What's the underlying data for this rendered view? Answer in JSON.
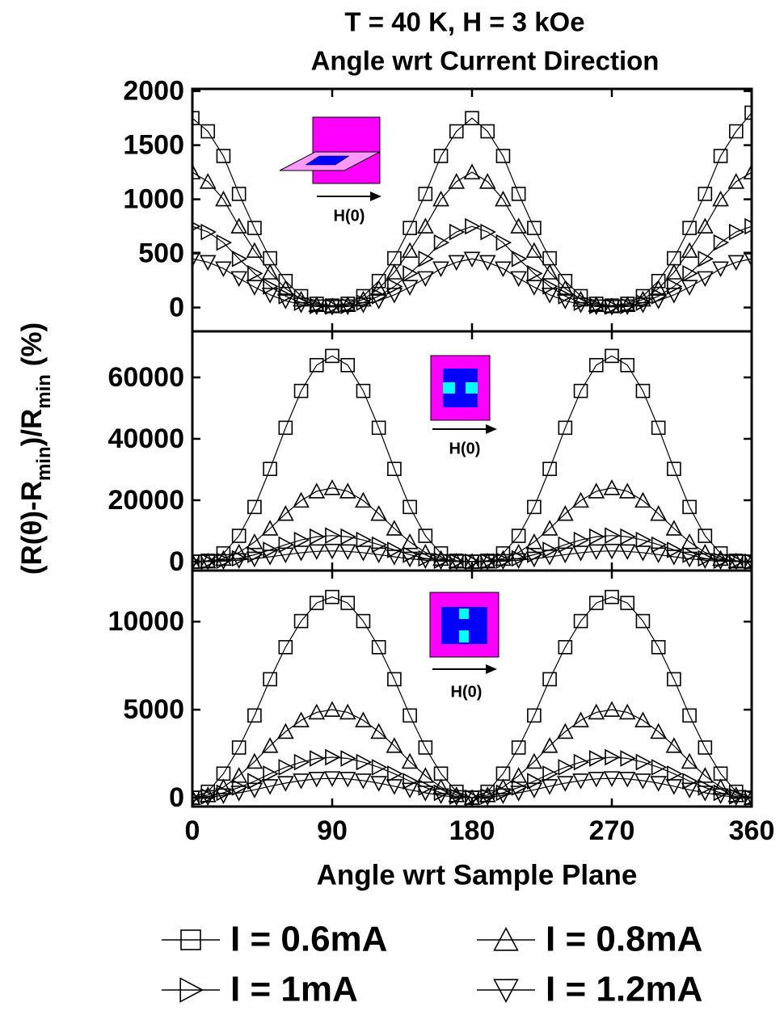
{
  "chart_data": [
    {
      "type": "scatter",
      "title": "T = 40 K, H = 3 kOe",
      "subtitle": "Angle wrt Current Direction",
      "inset_label": "H(0)",
      "x": [
        0,
        10,
        20,
        30,
        40,
        50,
        60,
        70,
        80,
        90,
        100,
        110,
        120,
        130,
        140,
        150,
        160,
        170,
        180,
        190,
        200,
        210,
        220,
        230,
        240,
        250,
        260,
        270,
        280,
        290,
        300,
        310,
        320,
        330,
        340,
        350,
        360
      ],
      "xlim": [
        0,
        360
      ],
      "xticks": [
        0,
        90,
        180,
        270,
        360
      ],
      "ylim": [
        -220,
        2020
      ],
      "yticks": [
        0,
        500,
        1000,
        1500,
        2000
      ],
      "series": [
        {
          "name": "I = 0.6mA",
          "marker": "square",
          "color": "#000000",
          "values": [
            1750,
            1628,
            1400,
            1050,
            735,
            455,
            245,
            105,
            35,
            18,
            35,
            105,
            245,
            455,
            735,
            1050,
            1400,
            1628,
            1750,
            1628,
            1400,
            1050,
            735,
            455,
            245,
            105,
            35,
            18,
            35,
            105,
            245,
            455,
            735,
            1050,
            1400,
            1628,
            1800
          ]
        },
        {
          "name": "I = 0.8mA",
          "marker": "triangle-up",
          "color": "#000000",
          "values": [
            1250,
            1163,
            1000,
            750,
            525,
            325,
            175,
            75,
            25,
            13,
            25,
            75,
            175,
            325,
            525,
            750,
            1000,
            1163,
            1250,
            1163,
            1000,
            750,
            525,
            325,
            175,
            75,
            25,
            13,
            25,
            75,
            175,
            325,
            525,
            750,
            1000,
            1163,
            1250
          ]
        },
        {
          "name": "I = 1mA",
          "marker": "triangle-right",
          "color": "#000000",
          "values": [
            750,
            698,
            600,
            450,
            315,
            195,
            105,
            45,
            15,
            8,
            15,
            45,
            105,
            195,
            315,
            450,
            600,
            698,
            750,
            698,
            600,
            450,
            315,
            195,
            105,
            45,
            15,
            8,
            15,
            45,
            105,
            195,
            315,
            450,
            600,
            698,
            750
          ]
        },
        {
          "name": "I = 1.2mA",
          "marker": "triangle-down",
          "color": "#000000",
          "values": [
            450,
            419,
            360,
            270,
            189,
            117,
            63,
            27,
            9,
            5,
            9,
            27,
            63,
            117,
            189,
            270,
            360,
            419,
            450,
            419,
            360,
            270,
            189,
            117,
            63,
            27,
            9,
            5,
            9,
            27,
            63,
            117,
            189,
            270,
            360,
            419,
            450
          ]
        }
      ]
    },
    {
      "type": "scatter",
      "inset_label": "H(0)",
      "y_label": [
        "(R(θ)-R",
        "min",
        ")/R",
        "min",
        " (%)"
      ],
      "x": [
        0,
        10,
        20,
        30,
        40,
        50,
        60,
        70,
        80,
        90,
        100,
        110,
        120,
        130,
        140,
        150,
        160,
        170,
        180,
        190,
        200,
        210,
        220,
        230,
        240,
        250,
        260,
        270,
        280,
        290,
        300,
        310,
        320,
        330,
        340,
        350,
        360
      ],
      "xlim": [
        0,
        360
      ],
      "xticks": [
        0,
        90,
        180,
        270,
        360
      ],
      "ylim": [
        -2900,
        75000
      ],
      "yticks": [
        0,
        20000,
        40000,
        60000
      ],
      "series": [
        {
          "name": "I = 0.6mA",
          "marker": "square",
          "color": "#000000",
          "values": [
            0,
            300,
            2700,
            8400,
            17800,
            30200,
            43600,
            55600,
            64000,
            67000,
            64000,
            55600,
            43600,
            30200,
            17800,
            8400,
            2700,
            300,
            0,
            300,
            2700,
            8400,
            17800,
            30200,
            43600,
            55600,
            64000,
            67000,
            64000,
            55600,
            43600,
            30200,
            17800,
            8400,
            2700,
            300,
            0
          ]
        },
        {
          "name": "I = 0.8mA",
          "marker": "triangle-up",
          "color": "#000000",
          "values": [
            0,
            120,
            960,
            3000,
            6400,
            10800,
            15600,
            19900,
            22900,
            24000,
            22900,
            19900,
            15600,
            10800,
            6400,
            3000,
            960,
            120,
            0,
            120,
            960,
            3000,
            6400,
            10800,
            15600,
            19900,
            22900,
            24000,
            22900,
            19900,
            15600,
            10800,
            6400,
            3000,
            960,
            120,
            0
          ]
        },
        {
          "name": "I = 1mA",
          "marker": "triangle-right",
          "color": "#000000",
          "values": [
            0,
            40,
            340,
            1060,
            2260,
            3830,
            5530,
            7060,
            8120,
            8500,
            8120,
            7060,
            5530,
            3830,
            2260,
            1060,
            340,
            40,
            0,
            40,
            340,
            1060,
            2260,
            3830,
            5530,
            7060,
            8120,
            8500,
            8120,
            7060,
            5530,
            3830,
            2260,
            1060,
            340,
            40,
            0
          ]
        },
        {
          "name": "I = 1.2mA",
          "marker": "triangle-down",
          "color": "#000000",
          "values": [
            0,
            20,
            140,
            440,
            930,
            1580,
            2280,
            2910,
            3340,
            3500,
            3340,
            2910,
            2280,
            1580,
            930,
            440,
            140,
            20,
            0,
            20,
            140,
            440,
            930,
            1580,
            2280,
            2910,
            3340,
            3500,
            3340,
            2910,
            2280,
            1580,
            930,
            440,
            140,
            20,
            0
          ]
        }
      ]
    },
    {
      "type": "scatter",
      "inset_label": "H(0)",
      "x_label": "Angle wrt Sample Plane",
      "x": [
        0,
        10,
        20,
        30,
        40,
        50,
        60,
        70,
        80,
        90,
        100,
        110,
        120,
        130,
        140,
        150,
        160,
        170,
        180,
        190,
        200,
        210,
        220,
        230,
        240,
        250,
        260,
        270,
        280,
        290,
        300,
        310,
        320,
        330,
        340,
        350,
        360
      ],
      "xlim": [
        0,
        360
      ],
      "xticks": [
        0,
        90,
        180,
        270,
        360
      ],
      "ylim": [
        -500,
        12900
      ],
      "yticks": [
        0,
        5000,
        10000
      ],
      "series": [
        {
          "name": "I = 0.6mA",
          "marker": "square",
          "color": "#000000",
          "values": [
            0,
            340,
            1370,
            2850,
            4670,
            6730,
            8550,
            10030,
            11060,
            11400,
            11060,
            10030,
            8550,
            6730,
            4670,
            2850,
            1370,
            340,
            0,
            340,
            1370,
            2850,
            4670,
            6730,
            8550,
            10030,
            11060,
            11400,
            11060,
            10030,
            8550,
            6730,
            4670,
            2850,
            1370,
            340,
            0
          ]
        },
        {
          "name": "I = 0.8mA",
          "marker": "triangle-up",
          "color": "#000000",
          "values": [
            0,
            150,
            600,
            1250,
            2050,
            2950,
            3750,
            4400,
            4850,
            5000,
            4850,
            4400,
            3750,
            2950,
            2050,
            1250,
            600,
            150,
            0,
            150,
            600,
            1250,
            2050,
            2950,
            3750,
            4400,
            4850,
            5000,
            4850,
            4400,
            3750,
            2950,
            2050,
            1250,
            600,
            150,
            0
          ]
        },
        {
          "name": "I = 1mA",
          "marker": "triangle-right",
          "color": "#000000",
          "values": [
            0,
            70,
            280,
            580,
            940,
            1360,
            1730,
            2020,
            2230,
            2300,
            2230,
            2020,
            1730,
            1360,
            940,
            580,
            280,
            70,
            0,
            70,
            280,
            580,
            940,
            1360,
            1730,
            2020,
            2230,
            2300,
            2230,
            2020,
            1730,
            1360,
            940,
            580,
            280,
            70,
            0
          ]
        },
        {
          "name": "I = 1.2mA",
          "marker": "triangle-down",
          "color": "#000000",
          "values": [
            0,
            30,
            130,
            280,
            450,
            650,
            830,
            970,
            1070,
            1100,
            1070,
            970,
            830,
            650,
            450,
            280,
            130,
            30,
            0,
            30,
            130,
            280,
            450,
            650,
            830,
            970,
            1070,
            1100,
            1070,
            970,
            830,
            650,
            450,
            280,
            130,
            30,
            0
          ]
        }
      ]
    }
  ]
}
